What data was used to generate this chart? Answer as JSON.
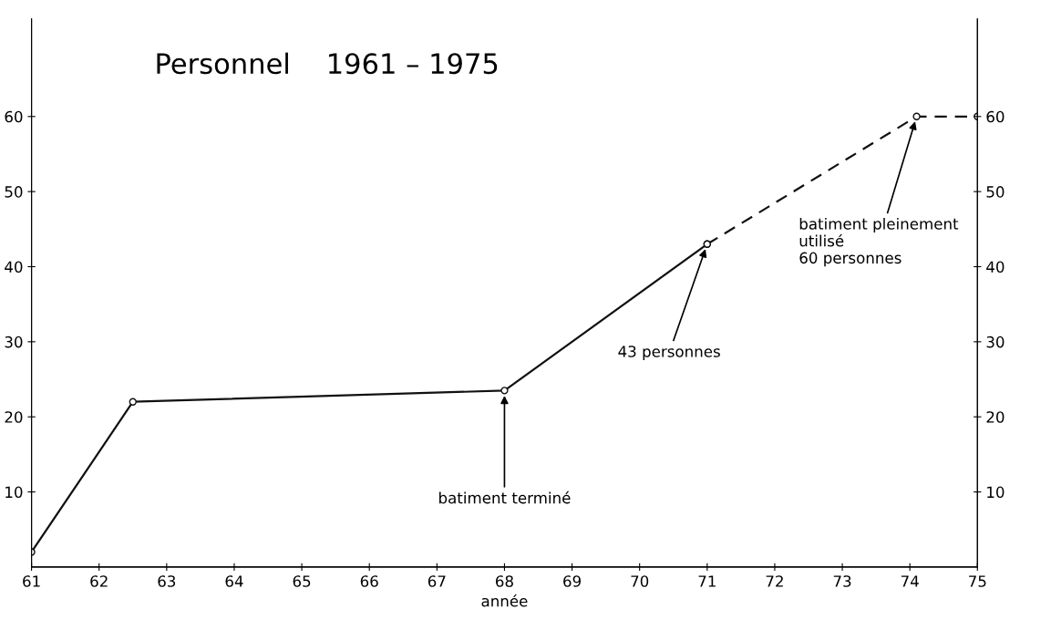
{
  "chart_data": {
    "type": "line",
    "title": "Personnel    1961 – 1975",
    "xlabel": "année",
    "series": [
      {
        "color": "#111111",
        "x": [
          61,
          62.5,
          68,
          71
        ],
        "values": [
          2,
          22,
          23.5,
          43
        ],
        "line_style": "solid",
        "marker": "circle"
      },
      {
        "color": "#111111",
        "x": [
          71,
          74.1,
          75
        ],
        "values": [
          43,
          60,
          60
        ],
        "line_style": "dashed",
        "marker": "circle"
      }
    ],
    "xlim": [
      61,
      75
    ],
    "xticks": [
      61,
      62,
      63,
      64,
      65,
      66,
      67,
      68,
      69,
      70,
      71,
      72,
      73,
      74,
      75
    ],
    "ylim": [
      0,
      73
    ],
    "yticks": [
      10,
      20,
      30,
      40,
      50,
      60
    ],
    "y2lim": [
      0,
      73
    ],
    "y2ticks": [
      10,
      20,
      30,
      40,
      50,
      60
    ],
    "grid": false,
    "annotations": [
      {
        "text": "batiment terminé",
        "x": 68,
        "y": 23.5
      },
      {
        "text": "43 personnes",
        "x": 71,
        "y": 43
      },
      {
        "text": "batiment pleinement\nutilisé\n60 personnes",
        "x": 74.1,
        "y": 60
      }
    ]
  }
}
